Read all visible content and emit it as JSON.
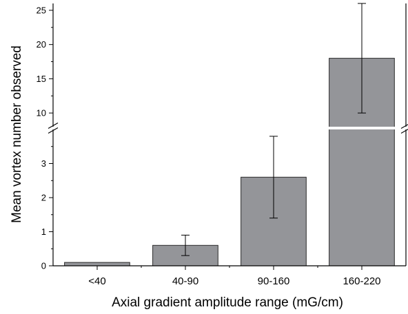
{
  "chart_data": {
    "type": "bar",
    "title": "",
    "xlabel": "Axial gradient amplitude range (mG/cm)",
    "ylabel": "Mean vortex number observed",
    "categories": [
      "<40",
      "40-90",
      "90-160",
      "160-220"
    ],
    "values": [
      0.1,
      0.6,
      2.6,
      18
    ],
    "error_low": [
      0.1,
      0.3,
      1.4,
      10
    ],
    "error_high": [
      0.1,
      0.9,
      3.8,
      26
    ],
    "y_axis_break": true,
    "ylim_lower": [
      0,
      4
    ],
    "ylim_upper": [
      8,
      26
    ],
    "yticks_lower": [
      "0",
      "1",
      "2",
      "3"
    ],
    "yticks_upper": [
      "10",
      "15",
      "20",
      "25"
    ],
    "bar_color": "#949599",
    "grid": false,
    "legend": "none"
  }
}
